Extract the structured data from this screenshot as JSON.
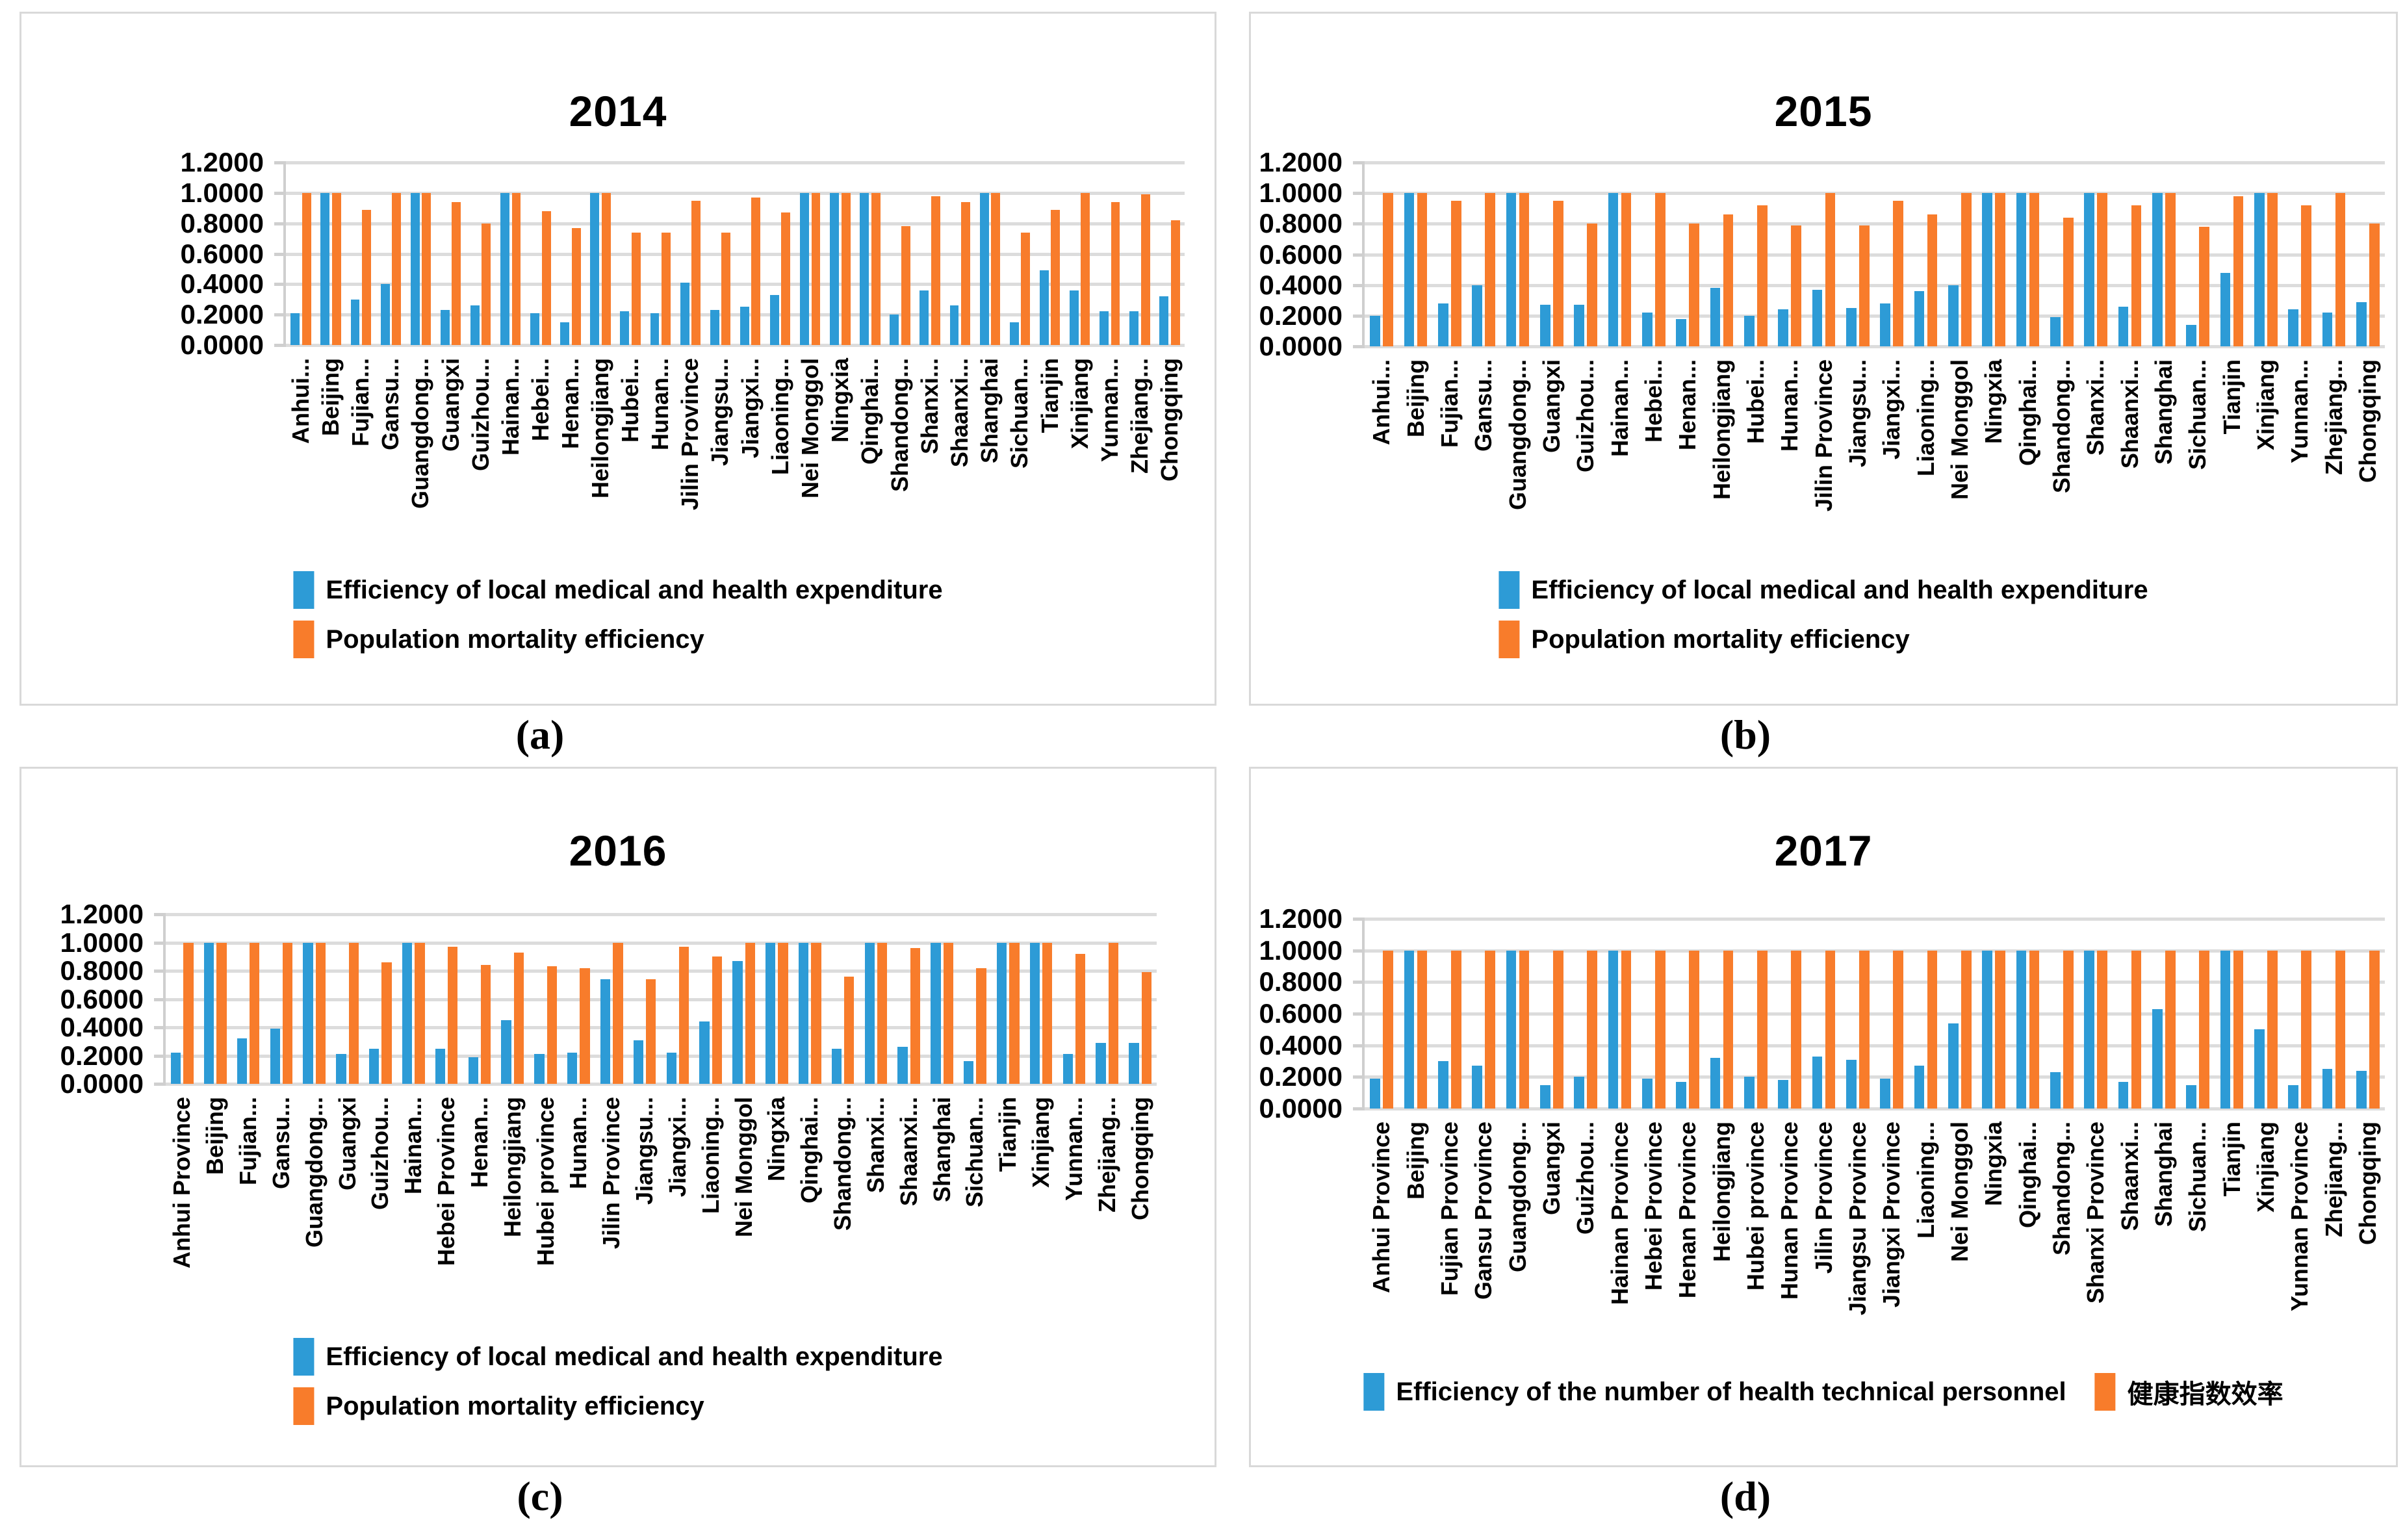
{
  "figure": {
    "background": "#ffffff",
    "panel_count": 4
  },
  "colors": {
    "series1": "#2d9bd6",
    "series2": "#f87c2b",
    "gridline": "#dcdcdc",
    "axis": "#cfcfcf",
    "panel_border": "#d9d9d9",
    "text": "#000000"
  },
  "chart_data": [
    {
      "type": "bar",
      "panel": "a",
      "caption": "(a)",
      "title": "2014",
      "xlabel": "",
      "ylabel": "",
      "ylim": [
        0,
        1.2
      ],
      "grid": true,
      "legend_position": "bottom-stacked",
      "ytick_labels": [
        "1.2000",
        "1.0000",
        "0.8000",
        "0.6000",
        "0.4000",
        "0.2000",
        "0.0000"
      ],
      "categories": [
        "Anhui...",
        "Beijing",
        "Fujian...",
        "Gansu...",
        "Guangdong...",
        "Guangxi",
        "Guizhou...",
        "Hainan...",
        "Hebei...",
        "Henan...",
        "Heilongjiang",
        "Hubei...",
        "Hunan...",
        "Jilin Province",
        "Jiangsu...",
        "Jiangxi...",
        "Liaoning...",
        "Nei Monggol",
        "Ningxia",
        "Qinghai...",
        "Shandong...",
        "Shanxi...",
        "Shaanxi...",
        "Shanghai",
        "Sichuan...",
        "Tianjin",
        "Xinjiang",
        "Yunnan...",
        "Zhejiang...",
        "Chongqing"
      ],
      "series": [
        {
          "name": "Efficiency of local medical and health expenditure",
          "color_key": "series1",
          "values": [
            0.21,
            1.0,
            0.3,
            0.4,
            1.0,
            0.23,
            0.26,
            1.0,
            0.21,
            0.15,
            1.0,
            0.22,
            0.21,
            0.41,
            0.23,
            0.25,
            0.33,
            1.0,
            1.0,
            1.0,
            0.2,
            0.36,
            0.26,
            1.0,
            0.15,
            0.49,
            0.36,
            0.22,
            0.22,
            0.32
          ]
        },
        {
          "name": "Population mortality efficiency",
          "color_key": "series2",
          "values": [
            1.0,
            1.0,
            0.89,
            1.0,
            1.0,
            0.94,
            0.8,
            1.0,
            0.88,
            0.77,
            1.0,
            0.74,
            0.74,
            0.95,
            0.74,
            0.97,
            0.87,
            1.0,
            1.0,
            1.0,
            0.78,
            0.98,
            0.94,
            1.0,
            0.74,
            0.89,
            1.0,
            0.94,
            0.99,
            0.82
          ]
        }
      ]
    },
    {
      "type": "bar",
      "panel": "b",
      "caption": "(b)",
      "title": "2015",
      "xlabel": "",
      "ylabel": "",
      "ylim": [
        0,
        1.2
      ],
      "grid": true,
      "legend_position": "bottom-stacked",
      "ytick_labels": [
        "1.2000",
        "1.0000",
        "0.8000",
        "0.6000",
        "0.4000",
        "0.2000",
        "0.0000"
      ],
      "categories": [
        "Anhui...",
        "Beijing",
        "Fujian...",
        "Gansu...",
        "Guangdong...",
        "Guangxi",
        "Guizhou...",
        "Hainan...",
        "Hebei...",
        "Henan...",
        "Heilongjiang",
        "Hubei...",
        "Hunan...",
        "Jilin Province",
        "Jiangsu...",
        "Jiangxi...",
        "Liaoning...",
        "Nei Monggol",
        "Ningxia",
        "Qinghai...",
        "Shandong...",
        "Shanxi...",
        "Shaanxi...",
        "Shanghai",
        "Sichuan...",
        "Tianjin",
        "Xinjiang",
        "Yunnan...",
        "Zhejiang...",
        "Chongqing"
      ],
      "series": [
        {
          "name": "Efficiency of local medical and health expenditure",
          "color_key": "series1",
          "values": [
            0.2,
            1.0,
            0.28,
            0.4,
            1.0,
            0.27,
            0.27,
            1.0,
            0.22,
            0.18,
            0.38,
            0.2,
            0.24,
            0.37,
            0.25,
            0.28,
            0.36,
            0.4,
            1.0,
            1.0,
            0.19,
            1.0,
            0.26,
            1.0,
            0.14,
            0.48,
            1.0,
            0.24,
            0.22,
            0.29
          ]
        },
        {
          "name": "Population mortality efficiency",
          "color_key": "series2",
          "values": [
            1.0,
            1.0,
            0.95,
            1.0,
            1.0,
            0.95,
            0.8,
            1.0,
            1.0,
            0.8,
            0.86,
            0.92,
            0.79,
            1.0,
            0.79,
            0.95,
            0.86,
            1.0,
            1.0,
            1.0,
            0.84,
            1.0,
            0.92,
            1.0,
            0.78,
            0.98,
            1.0,
            0.92,
            1.0,
            0.8
          ]
        }
      ]
    },
    {
      "type": "bar",
      "panel": "c",
      "caption": "(c)",
      "title": "2016",
      "xlabel": "",
      "ylabel": "",
      "ylim": [
        0,
        1.2
      ],
      "grid": true,
      "legend_position": "bottom-stacked",
      "ytick_labels": [
        "1.2000",
        "1.0000",
        "0.8000",
        "0.6000",
        "0.4000",
        "0.2000",
        "0.0000"
      ],
      "categories": [
        "Anhui Province",
        "Beijing",
        "Fujian...",
        "Gansu...",
        "Guangdong...",
        "Guangxi",
        "Guizhou...",
        "Hainan...",
        "Hebei Province",
        "Henan...",
        "Heilongjiang",
        "Hubei province",
        "Hunan...",
        "Jilin Province",
        "Jiangsu...",
        "Jiangxi...",
        "Liaoning...",
        "Nei Monggol",
        "Ningxia",
        "Qinghai...",
        "Shandong...",
        "Shanxi...",
        "Shaanxi...",
        "Shanghai",
        "Sichuan...",
        "Tianjin",
        "Xinjiang",
        "Yunnan...",
        "Zhejiang...",
        "Chongqing"
      ],
      "series": [
        {
          "name": "Efficiency of local medical and health expenditure",
          "color_key": "series1",
          "values": [
            0.22,
            1.0,
            0.32,
            0.39,
            1.0,
            0.21,
            0.25,
            1.0,
            0.25,
            0.19,
            0.45,
            0.21,
            0.22,
            0.74,
            0.31,
            0.22,
            0.44,
            0.87,
            1.0,
            1.0,
            0.25,
            1.0,
            0.26,
            1.0,
            0.16,
            1.0,
            1.0,
            0.21,
            0.29,
            0.29
          ]
        },
        {
          "name": "Population mortality efficiency",
          "color_key": "series2",
          "values": [
            1.0,
            1.0,
            1.0,
            1.0,
            1.0,
            1.0,
            0.86,
            1.0,
            0.97,
            0.84,
            0.93,
            0.83,
            0.82,
            1.0,
            0.74,
            0.97,
            0.9,
            1.0,
            1.0,
            1.0,
            0.76,
            1.0,
            0.96,
            1.0,
            0.82,
            1.0,
            1.0,
            0.92,
            1.0,
            0.79
          ]
        }
      ]
    },
    {
      "type": "bar",
      "panel": "d",
      "caption": "(d)",
      "title": "2017",
      "xlabel": "",
      "ylabel": "",
      "ylim": [
        0,
        1.2
      ],
      "grid": true,
      "legend_position": "bottom-inline",
      "ytick_labels": [
        "1.2000",
        "1.0000",
        "0.8000",
        "0.6000",
        "0.4000",
        "0.2000",
        "0.0000"
      ],
      "categories": [
        "Anhui Province",
        "Beijing",
        "Fujian Province",
        "Gansu Province",
        "Guangdong...",
        "Guangxi",
        "Guizhou...",
        "Hainan Province",
        "Hebei Province",
        "Henan Province",
        "Heilongjiang",
        "Hubei province",
        "Hunan Province",
        "Jilin Province",
        "Jiangsu Province",
        "Jiangxi Province",
        "Liaoning...",
        "Nei Monggol",
        "Ningxia",
        "Qinghai...",
        "Shandong...",
        "Shanxi Province",
        "Shaanxi...",
        "Shanghai",
        "Sichuan...",
        "Tianjin",
        "Xinjiang",
        "Yunnan Province",
        "Zhejiang...",
        "Chongqing"
      ],
      "series": [
        {
          "name": "Efficiency of the number of health technical personnel",
          "color_key": "series1",
          "values": [
            0.19,
            1.0,
            0.3,
            0.27,
            1.0,
            0.15,
            0.2,
            1.0,
            0.19,
            0.17,
            0.32,
            0.2,
            0.18,
            0.33,
            0.31,
            0.19,
            0.27,
            0.54,
            1.0,
            1.0,
            0.23,
            1.0,
            0.17,
            0.63,
            0.15,
            1.0,
            0.5,
            0.15,
            0.25,
            0.24
          ]
        },
        {
          "name": "健康指数效率",
          "color_key": "series2",
          "values": [
            1.0,
            1.0,
            1.0,
            1.0,
            1.0,
            1.0,
            1.0,
            1.0,
            1.0,
            1.0,
            1.0,
            1.0,
            1.0,
            1.0,
            1.0,
            1.0,
            1.0,
            1.0,
            1.0,
            1.0,
            1.0,
            1.0,
            1.0,
            1.0,
            1.0,
            1.0,
            1.0,
            1.0,
            1.0,
            1.0
          ]
        }
      ]
    }
  ]
}
